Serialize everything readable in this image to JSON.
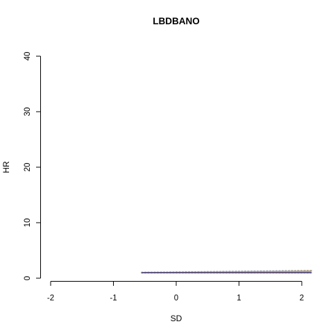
{
  "chart_data": {
    "type": "line",
    "title": "LBDBANO",
    "xlabel": "SD",
    "ylabel": "HR",
    "xlim": [
      -2.2,
      2.2
    ],
    "ylim": [
      0,
      40
    ],
    "x_ticks": [
      -2,
      -1,
      0,
      1,
      2
    ],
    "y_ticks": [
      0,
      10,
      20,
      30,
      40
    ],
    "x_tick_labels": [
      "-2",
      "-1",
      "0",
      "1",
      "2"
    ],
    "y_tick_labels": [
      "0",
      "10",
      "20",
      "30",
      "40"
    ],
    "grid": false,
    "legend": "none",
    "series": [
      {
        "role": "upper-ci",
        "color": "#a9a9a9",
        "dash": "dotted",
        "x": [
          -0.55,
          2.15
        ],
        "y": [
          1.0,
          1.35
        ]
      },
      {
        "role": "lower-ci",
        "color": "#a9a9a9",
        "dash": "dotted",
        "x": [
          -0.55,
          2.15
        ],
        "y": [
          1.0,
          1.0
        ]
      },
      {
        "role": "estimate",
        "color": "#e69f00",
        "dash": "solid",
        "x": [
          -0.55,
          0,
          0.5,
          1.0,
          1.5,
          2.15
        ],
        "y": [
          0.98,
          1.02,
          1.06,
          1.1,
          1.14,
          1.2
        ]
      },
      {
        "role": "reference",
        "color": "#3c3c8c",
        "dash": "solid",
        "x": [
          -0.55,
          2.15
        ],
        "y": [
          1.0,
          1.0
        ]
      }
    ]
  }
}
